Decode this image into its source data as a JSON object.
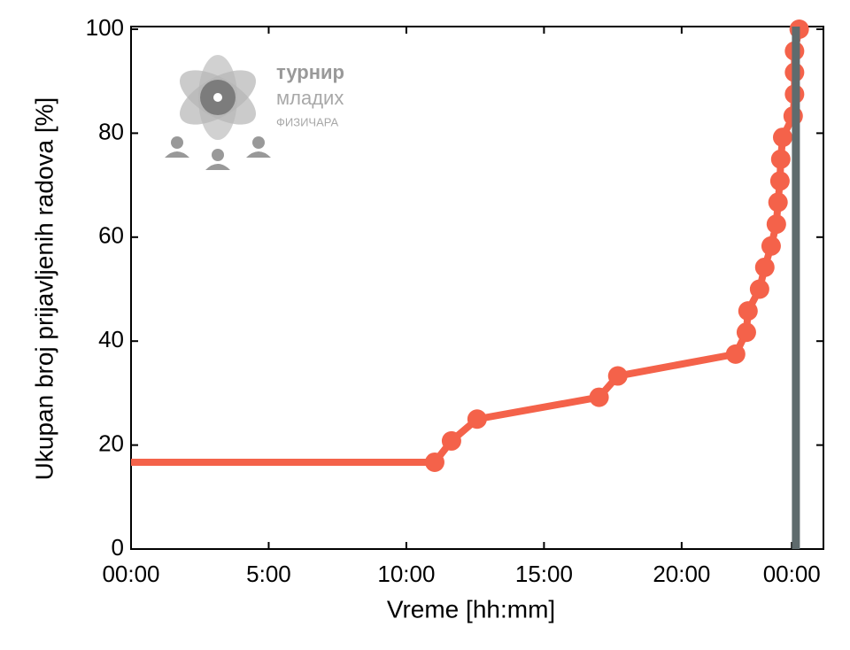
{
  "chart_data": {
    "type": "line",
    "xlabel": "Vreme [hh:mm]",
    "ylabel": "Ukupan broj prijavljenih radova [%]",
    "x": [
      11.03,
      11.64,
      12.57,
      17.0,
      17.68,
      21.96,
      22.35,
      22.41,
      22.83,
      23.02,
      23.25,
      23.44,
      23.5,
      23.57,
      23.6,
      23.67,
      24.05,
      24.1,
      24.1,
      24.1,
      24.27
    ],
    "series": [
      {
        "color": "#f4624a",
        "values": [
          16.7,
          20.8,
          25,
          29.2,
          33.3,
          37.5,
          41.7,
          45.8,
          50,
          54.2,
          58.3,
          62.5,
          66.7,
          70.8,
          75,
          79.2,
          83.3,
          87.5,
          91.7,
          95.8,
          100
        ]
      }
    ],
    "vline": {
      "x": 24.15,
      "color": "#5f6b6d"
    },
    "xlim": [
      0,
      25.15
    ],
    "ylim": [
      0,
      100
    ],
    "xticks": [
      {
        "value": 0,
        "label": "00:00"
      },
      {
        "value": 5,
        "label": "5:00"
      },
      {
        "value": 10,
        "label": "10:00"
      },
      {
        "value": 15,
        "label": "15:00"
      },
      {
        "value": 20,
        "label": "20:00"
      },
      {
        "value": 24,
        "label": "00:00"
      }
    ],
    "yticks": [
      0,
      20,
      40,
      60,
      80,
      100
    ]
  },
  "logo": {
    "line1": "турнир",
    "line2": "младих",
    "line3": "ФИЗИЧАРА"
  }
}
